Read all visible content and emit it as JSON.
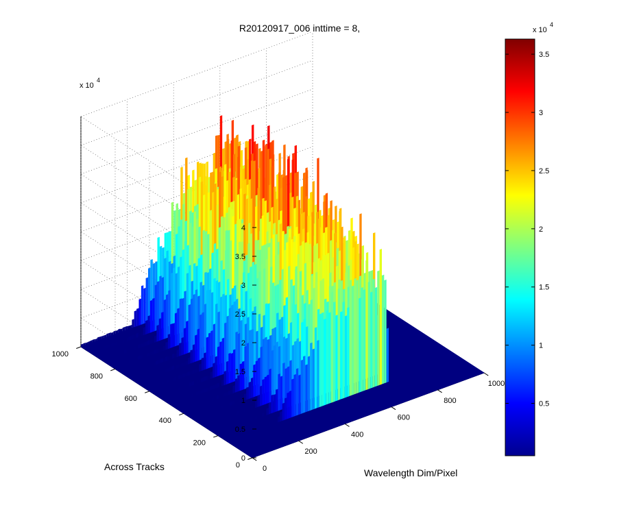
{
  "chart_data": {
    "type": "surface",
    "title": "R20120917_006 inttime = 8,",
    "xlabel": "Wavelength Dim/Pixel",
    "ylabel": "Across Tracks",
    "zlabel": "",
    "z_exponent_label": "x 10",
    "z_exponent_power": "4",
    "x_ticks": [
      "0",
      "200",
      "400",
      "600",
      "800",
      "1000"
    ],
    "y_ticks": [
      "0",
      "200",
      "400",
      "600",
      "800",
      "1000"
    ],
    "z_ticks": [
      "0",
      "0.5",
      "1",
      "1.5",
      "2",
      "2.5",
      "3",
      "3.5",
      "4"
    ],
    "xlim": [
      0,
      1000
    ],
    "ylim": [
      0,
      1000
    ],
    "zlim": [
      0,
      40000
    ],
    "colormap": "jet",
    "colorbar": {
      "exponent_label": "x 10",
      "exponent_power": "4",
      "ticks": [
        "0.5",
        "1",
        "1.5",
        "2",
        "2.5",
        "3",
        "3.5"
      ],
      "range": [
        500,
        36300
      ]
    },
    "grid": true,
    "surface_profile": {
      "wavelength_pixel": [
        0,
        220,
        300,
        360,
        420,
        460,
        500,
        540,
        580,
        620,
        650,
        690,
        700
      ],
      "peak_value": [
        400,
        700,
        10000,
        14000,
        21000,
        24000,
        23000,
        25000,
        27000,
        28000,
        27000,
        29000,
        400
      ],
      "across_track_extent": [
        150,
        1000
      ]
    }
  }
}
